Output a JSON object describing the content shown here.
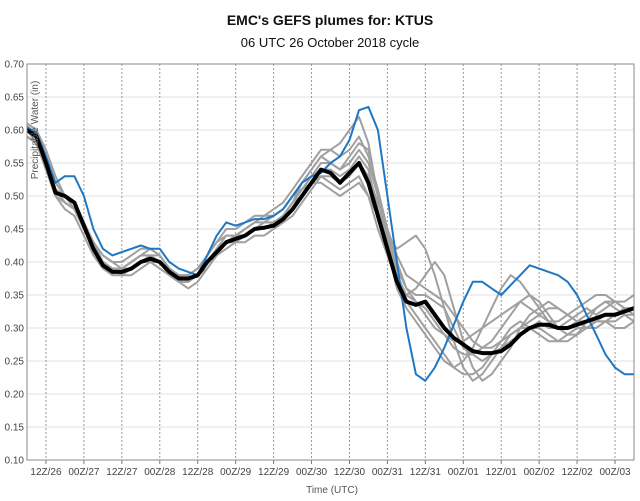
{
  "chart_data": {
    "type": "line",
    "title": "EMC's GEFS plumes for: KTUS",
    "subtitle": "06 UTC 26 October 2018 cycle",
    "xlabel": "Time (UTC)",
    "ylabel": "Precipitable Water (in)",
    "ylim": [
      0.1,
      0.7
    ],
    "xlim": [
      -6,
      186
    ],
    "x_ticks": [
      {
        "x": 0,
        "label": "12Z/26"
      },
      {
        "x": 12,
        "label": "00Z/27"
      },
      {
        "x": 24,
        "label": "12Z/27"
      },
      {
        "x": 36,
        "label": "00Z/28"
      },
      {
        "x": 48,
        "label": "12Z/28"
      },
      {
        "x": 60,
        "label": "00Z/29"
      },
      {
        "x": 72,
        "label": "12Z/29"
      },
      {
        "x": 84,
        "label": "00Z/30"
      },
      {
        "x": 96,
        "label": "12Z/30"
      },
      {
        "x": 108,
        "label": "00Z/31"
      },
      {
        "x": 120,
        "label": "12Z/31"
      },
      {
        "x": 132,
        "label": "00Z/01"
      },
      {
        "x": 144,
        "label": "12Z/01"
      },
      {
        "x": 156,
        "label": "00Z/02"
      },
      {
        "x": 168,
        "label": "12Z/02"
      },
      {
        "x": 180,
        "label": "00Z/03"
      }
    ],
    "y_ticks": [
      "0.10",
      "0.15",
      "0.20",
      "0.25",
      "0.30",
      "0.35",
      "0.40",
      "0.45",
      "0.50",
      "0.55",
      "0.60",
      "0.65",
      "0.70"
    ],
    "grid": true,
    "x": [
      -6,
      -3,
      0,
      3,
      6,
      9,
      12,
      15,
      18,
      21,
      24,
      27,
      30,
      33,
      36,
      39,
      42,
      45,
      48,
      51,
      54,
      57,
      60,
      63,
      66,
      69,
      72,
      75,
      78,
      81,
      84,
      87,
      90,
      93,
      96,
      99,
      102,
      105,
      108,
      111,
      114,
      117,
      120,
      123,
      126,
      129,
      132,
      135,
      138,
      141,
      144,
      147,
      150,
      153,
      156,
      159,
      162,
      165,
      168,
      171,
      174,
      177,
      180,
      183,
      186
    ],
    "series": [
      {
        "role": "mean",
        "color": "#000000",
        "values": [
          0.6,
          0.59,
          0.55,
          0.505,
          0.5,
          0.49,
          0.455,
          0.42,
          0.395,
          0.385,
          0.385,
          0.39,
          0.4,
          0.405,
          0.4,
          0.385,
          0.375,
          0.375,
          0.38,
          0.4,
          0.415,
          0.43,
          0.435,
          0.44,
          0.45,
          0.452,
          0.455,
          0.465,
          0.48,
          0.5,
          0.52,
          0.54,
          0.535,
          0.52,
          0.535,
          0.55,
          0.52,
          0.47,
          0.42,
          0.37,
          0.34,
          0.335,
          0.34,
          0.32,
          0.3,
          0.285,
          0.275,
          0.265,
          0.262,
          0.262,
          0.265,
          0.275,
          0.29,
          0.3,
          0.305,
          0.305,
          0.3,
          0.3,
          0.305,
          0.31,
          0.315,
          0.32,
          0.32,
          0.325,
          0.33
        ]
      },
      {
        "role": "control",
        "color": "#1f77c4",
        "values": [
          0.605,
          0.595,
          0.56,
          0.52,
          0.53,
          0.53,
          0.5,
          0.45,
          0.42,
          0.41,
          0.415,
          0.42,
          0.425,
          0.42,
          0.42,
          0.4,
          0.39,
          0.385,
          0.38,
          0.41,
          0.44,
          0.46,
          0.455,
          0.46,
          0.465,
          0.465,
          0.47,
          0.48,
          0.5,
          0.52,
          0.53,
          0.535,
          0.55,
          0.56,
          0.585,
          0.63,
          0.635,
          0.6,
          0.5,
          0.4,
          0.3,
          0.23,
          0.22,
          0.24,
          0.27,
          0.305,
          0.34,
          0.37,
          0.37,
          0.36,
          0.35,
          0.365,
          0.38,
          0.395,
          0.39,
          0.385,
          0.38,
          0.37,
          0.35,
          0.32,
          0.29,
          0.26,
          0.24,
          0.23,
          0.23
        ]
      },
      {
        "role": "member",
        "values": [
          0.61,
          0.6,
          0.57,
          0.53,
          0.5,
          0.48,
          0.45,
          0.42,
          0.4,
          0.39,
          0.39,
          0.4,
          0.41,
          0.41,
          0.4,
          0.38,
          0.37,
          0.37,
          0.38,
          0.4,
          0.42,
          0.44,
          0.44,
          0.45,
          0.46,
          0.46,
          0.46,
          0.47,
          0.49,
          0.51,
          0.53,
          0.55,
          0.55,
          0.54,
          0.55,
          0.57,
          0.55,
          0.5,
          0.44,
          0.39,
          0.36,
          0.35,
          0.35,
          0.34,
          0.33,
          0.3,
          0.27,
          0.26,
          0.25,
          0.26,
          0.27,
          0.28,
          0.29,
          0.3,
          0.31,
          0.3,
          0.3,
          0.31,
          0.32,
          0.33,
          0.32,
          0.33,
          0.34,
          0.34,
          0.35
        ]
      },
      {
        "role": "member",
        "values": [
          0.59,
          0.58,
          0.54,
          0.5,
          0.48,
          0.47,
          0.44,
          0.41,
          0.39,
          0.38,
          0.38,
          0.38,
          0.39,
          0.4,
          0.39,
          0.38,
          0.37,
          0.36,
          0.37,
          0.39,
          0.41,
          0.42,
          0.43,
          0.43,
          0.44,
          0.44,
          0.45,
          0.46,
          0.47,
          0.49,
          0.51,
          0.53,
          0.52,
          0.51,
          0.52,
          0.53,
          0.5,
          0.45,
          0.41,
          0.37,
          0.35,
          0.36,
          0.38,
          0.4,
          0.38,
          0.33,
          0.28,
          0.24,
          0.22,
          0.23,
          0.25,
          0.27,
          0.3,
          0.32,
          0.33,
          0.34,
          0.33,
          0.32,
          0.31,
          0.3,
          0.3,
          0.31,
          0.32,
          0.33,
          0.33
        ]
      },
      {
        "role": "member",
        "values": [
          0.6,
          0.59,
          0.55,
          0.51,
          0.49,
          0.48,
          0.46,
          0.43,
          0.41,
          0.4,
          0.39,
          0.4,
          0.41,
          0.42,
          0.41,
          0.39,
          0.38,
          0.38,
          0.39,
          0.41,
          0.43,
          0.44,
          0.44,
          0.44,
          0.45,
          0.45,
          0.46,
          0.47,
          0.49,
          0.52,
          0.54,
          0.56,
          0.57,
          0.58,
          0.6,
          0.62,
          0.58,
          0.5,
          0.43,
          0.38,
          0.34,
          0.32,
          0.3,
          0.28,
          0.26,
          0.24,
          0.23,
          0.23,
          0.24,
          0.26,
          0.28,
          0.3,
          0.31,
          0.3,
          0.29,
          0.28,
          0.28,
          0.29,
          0.3,
          0.3,
          0.31,
          0.31,
          0.3,
          0.3,
          0.31
        ]
      },
      {
        "role": "member",
        "values": [
          0.6,
          0.58,
          0.55,
          0.51,
          0.5,
          0.49,
          0.46,
          0.43,
          0.4,
          0.39,
          0.39,
          0.4,
          0.41,
          0.41,
          0.41,
          0.39,
          0.38,
          0.38,
          0.39,
          0.4,
          0.41,
          0.43,
          0.44,
          0.45,
          0.46,
          0.47,
          0.47,
          0.48,
          0.5,
          0.51,
          0.52,
          0.52,
          0.51,
          0.5,
          0.51,
          0.52,
          0.5,
          0.47,
          0.44,
          0.42,
          0.43,
          0.44,
          0.42,
          0.38,
          0.33,
          0.28,
          0.24,
          0.22,
          0.23,
          0.25,
          0.27,
          0.29,
          0.3,
          0.3,
          0.3,
          0.29,
          0.28,
          0.28,
          0.29,
          0.31,
          0.33,
          0.34,
          0.33,
          0.32,
          0.31
        ]
      },
      {
        "role": "member",
        "values": [
          0.61,
          0.6,
          0.56,
          0.52,
          0.5,
          0.49,
          0.46,
          0.42,
          0.4,
          0.39,
          0.38,
          0.39,
          0.4,
          0.41,
          0.4,
          0.39,
          0.38,
          0.37,
          0.38,
          0.39,
          0.41,
          0.43,
          0.44,
          0.44,
          0.45,
          0.46,
          0.47,
          0.48,
          0.5,
          0.52,
          0.54,
          0.56,
          0.55,
          0.54,
          0.56,
          0.58,
          0.57,
          0.5,
          0.42,
          0.36,
          0.33,
          0.31,
          0.29,
          0.27,
          0.25,
          0.24,
          0.25,
          0.27,
          0.3,
          0.33,
          0.36,
          0.38,
          0.37,
          0.35,
          0.33,
          0.31,
          0.3,
          0.3,
          0.31,
          0.32,
          0.33,
          0.34,
          0.34,
          0.33,
          0.32
        ]
      },
      {
        "role": "member",
        "values": [
          0.59,
          0.58,
          0.54,
          0.5,
          0.49,
          0.48,
          0.45,
          0.42,
          0.4,
          0.39,
          0.39,
          0.39,
          0.4,
          0.4,
          0.4,
          0.38,
          0.37,
          0.37,
          0.38,
          0.4,
          0.42,
          0.43,
          0.43,
          0.44,
          0.45,
          0.45,
          0.46,
          0.47,
          0.49,
          0.5,
          0.52,
          0.53,
          0.53,
          0.52,
          0.53,
          0.55,
          0.53,
          0.49,
          0.45,
          0.41,
          0.38,
          0.37,
          0.36,
          0.35,
          0.34,
          0.32,
          0.3,
          0.28,
          0.27,
          0.27,
          0.28,
          0.29,
          0.3,
          0.31,
          0.32,
          0.33,
          0.33,
          0.32,
          0.31,
          0.31,
          0.31,
          0.32,
          0.32,
          0.33,
          0.33
        ]
      },
      {
        "role": "member",
        "values": [
          0.6,
          0.59,
          0.55,
          0.51,
          0.5,
          0.49,
          0.46,
          0.43,
          0.41,
          0.4,
          0.4,
          0.41,
          0.42,
          0.42,
          0.41,
          0.39,
          0.38,
          0.38,
          0.39,
          0.41,
          0.43,
          0.45,
          0.45,
          0.46,
          0.47,
          0.47,
          0.48,
          0.49,
          0.51,
          0.53,
          0.55,
          0.57,
          0.57,
          0.56,
          0.57,
          0.59,
          0.56,
          0.51,
          0.45,
          0.4,
          0.36,
          0.34,
          0.32,
          0.3,
          0.29,
          0.28,
          0.28,
          0.29,
          0.3,
          0.31,
          0.32,
          0.33,
          0.34,
          0.33,
          0.32,
          0.31,
          0.31,
          0.32,
          0.33,
          0.34,
          0.35,
          0.35,
          0.34,
          0.33,
          0.33
        ]
      },
      {
        "role": "member",
        "values": [
          0.6,
          0.59,
          0.55,
          0.51,
          0.49,
          0.48,
          0.45,
          0.42,
          0.4,
          0.39,
          0.38,
          0.39,
          0.4,
          0.4,
          0.4,
          0.38,
          0.37,
          0.37,
          0.38,
          0.4,
          0.42,
          0.43,
          0.44,
          0.44,
          0.45,
          0.46,
          0.46,
          0.47,
          0.49,
          0.51,
          0.53,
          0.54,
          0.54,
          0.53,
          0.54,
          0.56,
          0.54,
          0.48,
          0.42,
          0.38,
          0.35,
          0.34,
          0.33,
          0.31,
          0.29,
          0.27,
          0.26,
          0.26,
          0.27,
          0.28,
          0.3,
          0.32,
          0.34,
          0.35,
          0.34,
          0.32,
          0.3,
          0.29,
          0.29,
          0.3,
          0.31,
          0.31,
          0.31,
          0.32,
          0.32
        ]
      }
    ]
  }
}
